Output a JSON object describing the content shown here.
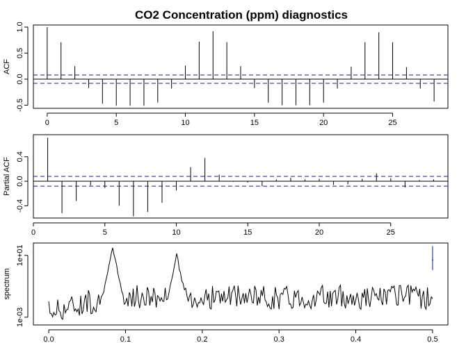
{
  "title": "CO2 Concentration (ppm) diagnostics",
  "chart_data": [
    {
      "type": "bar",
      "id": "acf",
      "ylabel": "ACF",
      "xlabel": "",
      "xlim": [
        -1,
        29
      ],
      "ylim": [
        -0.56,
        1.04
      ],
      "xticks": [
        0,
        5,
        10,
        15,
        20,
        25
      ],
      "yticks": [
        -0.5,
        0.0,
        0.5,
        1.0
      ],
      "ytick_labels": [
        "-0.5",
        "0.0",
        "0.5",
        "1.0"
      ],
      "conf_bound": 0.08,
      "lags": [
        0,
        1,
        2,
        3,
        4,
        5,
        6,
        7,
        8,
        9,
        10,
        11,
        12,
        13,
        14,
        15,
        16,
        17,
        18,
        19,
        20,
        21,
        22,
        23,
        24,
        25,
        26,
        27,
        28
      ],
      "values": [
        1.0,
        0.71,
        0.25,
        -0.17,
        -0.47,
        -0.51,
        -0.51,
        -0.51,
        -0.45,
        -0.18,
        0.26,
        0.72,
        0.92,
        0.71,
        0.25,
        -0.17,
        -0.45,
        -0.5,
        -0.5,
        -0.5,
        -0.45,
        -0.18,
        0.24,
        0.71,
        0.9,
        0.71,
        0.23,
        -0.18,
        -0.43
      ]
    },
    {
      "type": "bar",
      "id": "pacf",
      "ylabel": "Partial ACF",
      "xlabel": "",
      "xlim": [
        0,
        29
      ],
      "ylim": [
        -0.6,
        0.76
      ],
      "xticks": [
        0,
        5,
        10,
        15,
        20,
        25
      ],
      "yticks": [
        -0.4,
        0.0,
        0.4
      ],
      "ytick_labels": [
        "-0.4",
        "0.0",
        "0.4"
      ],
      "conf_bound": 0.08,
      "lags": [
        1,
        2,
        3,
        4,
        5,
        6,
        7,
        8,
        9,
        10,
        11,
        12,
        13,
        14,
        15,
        16,
        17,
        18,
        19,
        20,
        21,
        22,
        23,
        24,
        25,
        26,
        27,
        28
      ],
      "values": [
        0.71,
        -0.52,
        -0.32,
        -0.07,
        -0.11,
        -0.4,
        -0.57,
        -0.5,
        -0.35,
        -0.15,
        0.23,
        0.38,
        0.11,
        -0.01,
        -0.02,
        -0.08,
        0.03,
        0.06,
        0.03,
        0.04,
        -0.06,
        -0.05,
        0.04,
        0.13,
        0.05,
        -0.1,
        0.02,
        0.03
      ]
    },
    {
      "type": "line",
      "id": "spectrum",
      "ylabel": "spectrum",
      "xlabel": "",
      "log_y": true,
      "xlim": [
        -0.02,
        0.52
      ],
      "log10_ylim": [
        -3.5,
        1.8
      ],
      "xticks": [
        0.0,
        0.1,
        0.2,
        0.3,
        0.4,
        0.5
      ],
      "xtick_labels": [
        "0.0",
        "0.1",
        "0.2",
        "0.3",
        "0.4",
        "0.5"
      ],
      "yticks_log10": [
        -3,
        1
      ],
      "ytick_labels": [
        "1e-03",
        "1e+01"
      ],
      "series_color": "#000000",
      "noise_log10_range": [
        -3.4,
        -1.3
      ],
      "peaks": [
        {
          "frequency": 0.0833,
          "log10_spectrum": 1.45
        },
        {
          "frequency": 0.1667,
          "log10_spectrum": 1.0
        }
      ],
      "ci_bar": {
        "frequency": 0.5,
        "log10_low": 0.05,
        "log10_mid": 0.7,
        "log10_high": 1.6,
        "color": "#1f3fbf"
      }
    }
  ]
}
